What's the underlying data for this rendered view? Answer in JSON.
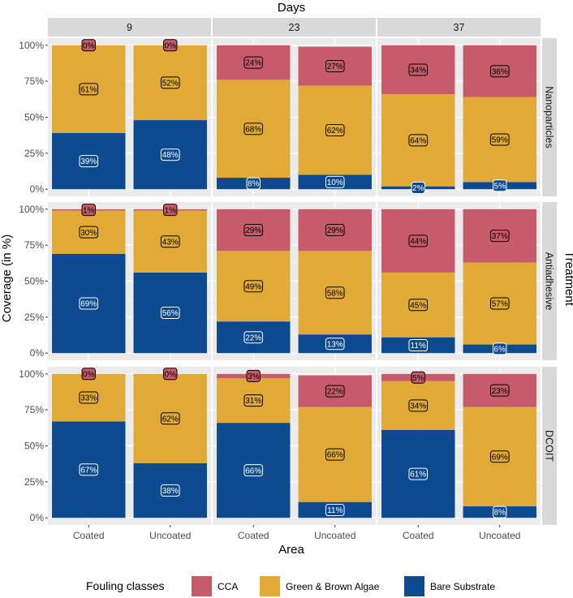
{
  "chart_data": {
    "type": "bar",
    "stacked": true,
    "facet_col_title": "Days",
    "facet_row_title": "Treatment",
    "xlabel": "Area",
    "ylabel": "Coverage (in %)",
    "ylim": [
      0,
      100
    ],
    "yticks": [
      "0%",
      "25%",
      "50%",
      "75%",
      "100%"
    ],
    "categories": [
      "Coated",
      "Uncoated"
    ],
    "columns": [
      "9",
      "23",
      "37"
    ],
    "rows": [
      "Nanoparticles",
      "Antiadhesive",
      "DCOIT"
    ],
    "legend": {
      "title": "Fouling classes",
      "position": "bottom",
      "entries": [
        "CCA",
        "Green & Brown Algae",
        "Bare Substrate"
      ]
    },
    "classes": [
      {
        "name": "Bare Substrate",
        "color": "#0d4a8f",
        "label_text_color": "#ffffff"
      },
      {
        "name": "Green & Brown Algae",
        "color": "#e1aa37",
        "label_text_color": "#000000"
      },
      {
        "name": "CCA",
        "color": "#c75b6c",
        "label_text_color": "#000000"
      }
    ],
    "panels": [
      {
        "row": "Nanoparticles",
        "column": "9",
        "bars": [
          {
            "area": "Coated",
            "values": {
              "Bare Substrate": 39,
              "Green & Brown Algae": 61,
              "CCA": 0
            },
            "labels": {
              "Bare Substrate": "39%",
              "Green & Brown Algae": "61%",
              "CCA": "0%"
            }
          },
          {
            "area": "Uncoated",
            "values": {
              "Bare Substrate": 48,
              "Green & Brown Algae": 52,
              "CCA": 0
            },
            "labels": {
              "Bare Substrate": "48%",
              "Green & Brown Algae": "52%",
              "CCA": "0%"
            }
          }
        ]
      },
      {
        "row": "Nanoparticles",
        "column": "23",
        "bars": [
          {
            "area": "Coated",
            "values": {
              "Bare Substrate": 8,
              "Green & Brown Algae": 68,
              "CCA": 24
            },
            "labels": {
              "Bare Substrate": "8%",
              "Green & Brown Algae": "68%",
              "CCA": "24%"
            }
          },
          {
            "area": "Uncoated",
            "values": {
              "Bare Substrate": 10,
              "Green & Brown Algae": 62,
              "CCA": 27
            },
            "labels": {
              "Bare Substrate": "10%",
              "Green & Brown Algae": "62%",
              "CCA": "27%"
            }
          }
        ]
      },
      {
        "row": "Nanoparticles",
        "column": "37",
        "bars": [
          {
            "area": "Coated",
            "values": {
              "Bare Substrate": 2,
              "Green & Brown Algae": 64,
              "CCA": 34
            },
            "labels": {
              "Bare Substrate": "2%",
              "Green & Brown Algae": "64%",
              "CCA": "34%"
            }
          },
          {
            "area": "Uncoated",
            "values": {
              "Bare Substrate": 5,
              "Green & Brown Algae": 59,
              "CCA": 36
            },
            "labels": {
              "Bare Substrate": "5%",
              "Green & Brown Algae": "59%",
              "CCA": "36%"
            }
          }
        ]
      },
      {
        "row": "Antiadhesive",
        "column": "9",
        "bars": [
          {
            "area": "Coated",
            "values": {
              "Bare Substrate": 69,
              "Green & Brown Algae": 30,
              "CCA": 1
            },
            "labels": {
              "Bare Substrate": "69%",
              "Green & Brown Algae": "30%",
              "CCA": "1%"
            }
          },
          {
            "area": "Uncoated",
            "values": {
              "Bare Substrate": 56,
              "Green & Brown Algae": 43,
              "CCA": 1
            },
            "labels": {
              "Bare Substrate": "56%",
              "Green & Brown Algae": "43%",
              "CCA": "1%"
            }
          }
        ]
      },
      {
        "row": "Antiadhesive",
        "column": "23",
        "bars": [
          {
            "area": "Coated",
            "values": {
              "Bare Substrate": 22,
              "Green & Brown Algae": 49,
              "CCA": 29
            },
            "labels": {
              "Bare Substrate": "22%",
              "Green & Brown Algae": "49%",
              "CCA": "29%"
            }
          },
          {
            "area": "Uncoated",
            "values": {
              "Bare Substrate": 13,
              "Green & Brown Algae": 58,
              "CCA": 29
            },
            "labels": {
              "Bare Substrate": "13%",
              "Green & Brown Algae": "58%",
              "CCA": "29%"
            }
          }
        ]
      },
      {
        "row": "Antiadhesive",
        "column": "37",
        "bars": [
          {
            "area": "Coated",
            "values": {
              "Bare Substrate": 11,
              "Green & Brown Algae": 45,
              "CCA": 44
            },
            "labels": {
              "Bare Substrate": "11%",
              "Green & Brown Algae": "45%",
              "CCA": "44%"
            }
          },
          {
            "area": "Uncoated",
            "values": {
              "Bare Substrate": 6,
              "Green & Brown Algae": 57,
              "CCA": 37
            },
            "labels": {
              "Bare Substrate": "6%",
              "Green & Brown Algae": "57%",
              "CCA": "37%"
            }
          }
        ]
      },
      {
        "row": "DCOIT",
        "column": "9",
        "bars": [
          {
            "area": "Coated",
            "values": {
              "Bare Substrate": 67,
              "Green & Brown Algae": 33,
              "CCA": 0
            },
            "labels": {
              "Bare Substrate": "67%",
              "Green & Brown Algae": "33%",
              "CCA": "0%"
            }
          },
          {
            "area": "Uncoated",
            "values": {
              "Bare Substrate": 38,
              "Green & Brown Algae": 62,
              "CCA": 0
            },
            "labels": {
              "Bare Substrate": "38%",
              "Green & Brown Algae": "62%",
              "CCA": "0%"
            }
          }
        ]
      },
      {
        "row": "DCOIT",
        "column": "23",
        "bars": [
          {
            "area": "Coated",
            "values": {
              "Bare Substrate": 66,
              "Green & Brown Algae": 31,
              "CCA": 3
            },
            "labels": {
              "Bare Substrate": "66%",
              "Green & Brown Algae": "31%",
              "CCA": "3%"
            }
          },
          {
            "area": "Uncoated",
            "values": {
              "Bare Substrate": 11,
              "Green & Brown Algae": 66,
              "CCA": 22
            },
            "labels": {
              "Bare Substrate": "11%",
              "Green & Brown Algae": "66%",
              "CCA": "22%"
            }
          }
        ]
      },
      {
        "row": "DCOIT",
        "column": "37",
        "bars": [
          {
            "area": "Coated",
            "values": {
              "Bare Substrate": 61,
              "Green & Brown Algae": 34,
              "CCA": 5
            },
            "labels": {
              "Bare Substrate": "61%",
              "Green & Brown Algae": "34%",
              "CCA": "5%"
            }
          },
          {
            "area": "Uncoated",
            "values": {
              "Bare Substrate": 8,
              "Green & Brown Algae": 69,
              "CCA": 23
            },
            "labels": {
              "Bare Substrate": "8%",
              "Green & Brown Algae": "69%",
              "CCA": "23%"
            }
          }
        ]
      }
    ]
  }
}
